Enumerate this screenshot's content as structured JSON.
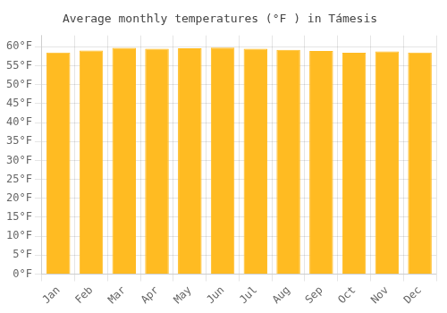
{
  "chart_data": {
    "type": "bar",
    "title": "Average monthly temperatures (°F ) in Támesis",
    "categories": [
      "Jan",
      "Feb",
      "Mar",
      "Apr",
      "May",
      "Jun",
      "Jul",
      "Aug",
      "Sep",
      "Oct",
      "Nov",
      "Dec"
    ],
    "values": [
      58.5,
      59.0,
      59.7,
      59.5,
      59.6,
      59.8,
      59.5,
      59.2,
      58.9,
      58.4,
      58.8,
      58.5
    ],
    "color": "#FFBB22",
    "ylim": [
      0,
      63
    ],
    "yticks": [
      {
        "value": 0,
        "label": "0°F"
      },
      {
        "value": 5,
        "label": "5°F"
      },
      {
        "value": 10,
        "label": "10°F"
      },
      {
        "value": 15,
        "label": "15°F"
      },
      {
        "value": 20,
        "label": "20°F"
      },
      {
        "value": 25,
        "label": "25°F"
      },
      {
        "value": 30,
        "label": "30°F"
      },
      {
        "value": 35,
        "label": "35°F"
      },
      {
        "value": 40,
        "label": "40°F"
      },
      {
        "value": 45,
        "label": "45°F"
      },
      {
        "value": 50,
        "label": "50°F"
      },
      {
        "value": 55,
        "label": "55°F"
      },
      {
        "value": 60,
        "label": "60°F"
      }
    ],
    "grid": true
  }
}
